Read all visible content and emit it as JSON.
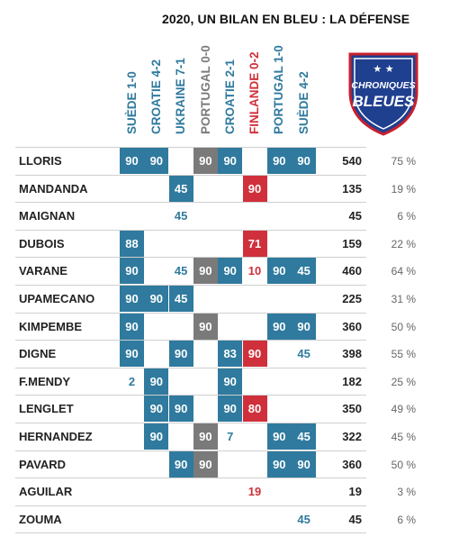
{
  "title": "2020, UN BILAN EN BLEU : LA DÉFENSE",
  "logo": {
    "line1": "CHRONIQUES",
    "line2": "BLEUES",
    "stars": "★ ★"
  },
  "colors": {
    "win": "#2f7a9e",
    "draw": "#7a7a7a",
    "loss": "#d0303b",
    "text_win": "#2f7a9e",
    "text_loss": "#d0303b"
  },
  "chart_data": {
    "type": "table",
    "matches": [
      {
        "label": "SUÈDE 1-0",
        "result": "win"
      },
      {
        "label": "CROATIE 4-2",
        "result": "win"
      },
      {
        "label": "UKRAINE 7-1",
        "result": "win"
      },
      {
        "label": "PORTUGAL 0-0",
        "result": "draw"
      },
      {
        "label": "CROATIE 2-1",
        "result": "win"
      },
      {
        "label": "FINLANDE 0-2",
        "result": "loss"
      },
      {
        "label": "PORTUGAL 1-0",
        "result": "win"
      },
      {
        "label": "SUÈDE 4-2",
        "result": "win"
      }
    ],
    "players": [
      {
        "name": "LLORIS",
        "total": "540",
        "pct": "75 %",
        "minutes": [
          {
            "v": "90",
            "starter": true
          },
          {
            "v": "90",
            "starter": true
          },
          null,
          {
            "v": "90",
            "starter": true
          },
          {
            "v": "90",
            "starter": true
          },
          null,
          {
            "v": "90",
            "starter": true
          },
          {
            "v": "90",
            "starter": true
          }
        ]
      },
      {
        "name": "MANDANDA",
        "total": "135",
        "pct": "19 %",
        "minutes": [
          null,
          null,
          {
            "v": "45",
            "starter": true
          },
          null,
          null,
          {
            "v": "90",
            "starter": true
          },
          null,
          null
        ]
      },
      {
        "name": "MAIGNAN",
        "total": "45",
        "pct": "6 %",
        "minutes": [
          null,
          null,
          {
            "v": "45",
            "starter": false
          },
          null,
          null,
          null,
          null,
          null
        ]
      },
      {
        "name": "DUBOIS",
        "total": "159",
        "pct": "22 %",
        "minutes": [
          {
            "v": "88",
            "starter": true
          },
          null,
          null,
          null,
          null,
          {
            "v": "71",
            "starter": true
          },
          null,
          null
        ]
      },
      {
        "name": "VARANE",
        "total": "460",
        "pct": "64 %",
        "minutes": [
          {
            "v": "90",
            "starter": true
          },
          null,
          {
            "v": "45",
            "starter": false
          },
          {
            "v": "90",
            "starter": true
          },
          {
            "v": "90",
            "starter": true
          },
          {
            "v": "10",
            "starter": false
          },
          {
            "v": "90",
            "starter": true
          },
          {
            "v": "45",
            "starter": true
          }
        ]
      },
      {
        "name": "UPAMECANO",
        "total": "225",
        "pct": "31 %",
        "minutes": [
          {
            "v": "90",
            "starter": true
          },
          {
            "v": "90",
            "starter": true
          },
          {
            "v": "45",
            "starter": true
          },
          null,
          null,
          null,
          null,
          null
        ]
      },
      {
        "name": "KIMPEMBE",
        "total": "360",
        "pct": "50 %",
        "minutes": [
          {
            "v": "90",
            "starter": true
          },
          null,
          null,
          {
            "v": "90",
            "starter": true
          },
          null,
          null,
          {
            "v": "90",
            "starter": true
          },
          {
            "v": "90",
            "starter": true
          }
        ]
      },
      {
        "name": "DIGNE",
        "total": "398",
        "pct": "55 %",
        "minutes": [
          {
            "v": "90",
            "starter": true
          },
          null,
          {
            "v": "90",
            "starter": true
          },
          null,
          {
            "v": "83",
            "starter": true
          },
          {
            "v": "90",
            "starter": true
          },
          null,
          {
            "v": "45",
            "starter": false
          }
        ]
      },
      {
        "name": "F.MENDY",
        "total": "182",
        "pct": "25 %",
        "minutes": [
          {
            "v": "2",
            "starter": false
          },
          {
            "v": "90",
            "starter": true
          },
          null,
          null,
          {
            "v": "90",
            "starter": true
          },
          null,
          null,
          null
        ]
      },
      {
        "name": "LENGLET",
        "total": "350",
        "pct": "49 %",
        "minutes": [
          null,
          {
            "v": "90",
            "starter": true
          },
          {
            "v": "90",
            "starter": true
          },
          null,
          {
            "v": "90",
            "starter": true
          },
          {
            "v": "80",
            "starter": true
          },
          null,
          null
        ]
      },
      {
        "name": "HERNANDEZ",
        "total": "322",
        "pct": "45 %",
        "minutes": [
          null,
          {
            "v": "90",
            "starter": true
          },
          null,
          {
            "v": "90",
            "starter": true
          },
          {
            "v": "7",
            "starter": false
          },
          null,
          {
            "v": "90",
            "starter": true
          },
          {
            "v": "45",
            "starter": true
          }
        ]
      },
      {
        "name": "PAVARD",
        "total": "360",
        "pct": "50 %",
        "minutes": [
          null,
          null,
          {
            "v": "90",
            "starter": true
          },
          {
            "v": "90",
            "starter": true
          },
          null,
          null,
          {
            "v": "90",
            "starter": true
          },
          {
            "v": "90",
            "starter": true
          }
        ]
      },
      {
        "name": "AGUILAR",
        "total": "19",
        "pct": "3 %",
        "minutes": [
          null,
          null,
          null,
          null,
          null,
          {
            "v": "19",
            "starter": false
          },
          null,
          null
        ]
      },
      {
        "name": "ZOUMA",
        "total": "45",
        "pct": "6 %",
        "minutes": [
          null,
          null,
          null,
          null,
          null,
          null,
          null,
          {
            "v": "45",
            "starter": false
          }
        ]
      }
    ]
  }
}
